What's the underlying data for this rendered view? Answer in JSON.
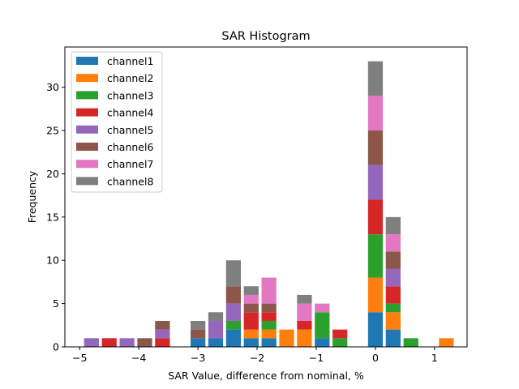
{
  "chart_data": {
    "type": "bar",
    "stacked": true,
    "title": "SAR Histogram",
    "xlabel": "SAR Value, difference from nominal, %",
    "ylabel": "Frequency",
    "xlim": [
      -5.25,
      1.55
    ],
    "ylim": [
      0,
      34.65
    ],
    "bin_width": 0.25,
    "x": [
      -4.8,
      -4.5,
      -4.2,
      -3.9,
      -3.6,
      -3.0,
      -2.7,
      -2.4,
      -2.1,
      -1.8,
      -1.5,
      -1.2,
      -0.9,
      -0.6,
      -0.3,
      0.0,
      0.3,
      0.6,
      1.2
    ],
    "series": [
      {
        "name": "channel1",
        "color": "#1f77b4",
        "values": [
          0,
          0,
          0,
          0,
          0,
          1,
          1,
          2,
          1,
          1,
          0,
          0,
          1,
          0,
          0,
          4,
          2,
          0,
          0
        ]
      },
      {
        "name": "channel2",
        "color": "#ff7f0e",
        "values": [
          0,
          0,
          0,
          0,
          0,
          0,
          0,
          0,
          1,
          1,
          2,
          2,
          0,
          0,
          0,
          4,
          2,
          0,
          1
        ]
      },
      {
        "name": "channel3",
        "color": "#2ca02c",
        "values": [
          0,
          0,
          0,
          0,
          0,
          0,
          0,
          1,
          0,
          1,
          0,
          0,
          3,
          1,
          0,
          5,
          1,
          1,
          0
        ]
      },
      {
        "name": "channel4",
        "color": "#d62728",
        "values": [
          0,
          1,
          0,
          0,
          1,
          0,
          0,
          0,
          2,
          1,
          0,
          1,
          0,
          1,
          0,
          4,
          2,
          0,
          0
        ]
      },
      {
        "name": "channel5",
        "color": "#9467bd",
        "values": [
          1,
          0,
          1,
          0,
          1,
          0,
          2,
          2,
          0,
          0,
          0,
          0,
          0,
          0,
          0,
          4,
          2,
          0,
          0
        ]
      },
      {
        "name": "channel6",
        "color": "#8c564b",
        "values": [
          0,
          0,
          0,
          1,
          1,
          1,
          0,
          2,
          1,
          1,
          0,
          0,
          0,
          0,
          0,
          4,
          2,
          0,
          0
        ]
      },
      {
        "name": "channel7",
        "color": "#e377c2",
        "values": [
          0,
          0,
          0,
          0,
          0,
          0,
          0,
          0,
          1,
          3,
          0,
          2,
          1,
          0,
          0,
          4,
          2,
          0,
          0
        ]
      },
      {
        "name": "channel8",
        "color": "#7f7f7f",
        "values": [
          0,
          0,
          0,
          0,
          0,
          1,
          1,
          3,
          1,
          0,
          0,
          1,
          0,
          0,
          0,
          4,
          2,
          0,
          0
        ]
      }
    ],
    "xticks": [
      -5,
      -4,
      -3,
      -2,
      -1,
      0,
      1
    ],
    "xtick_labels": [
      "−5",
      "−4",
      "−3",
      "−2",
      "−1",
      "0",
      "1"
    ],
    "yticks": [
      0,
      5,
      10,
      15,
      20,
      25,
      30
    ],
    "ytick_labels": [
      "0",
      "5",
      "10",
      "15",
      "20",
      "25",
      "30"
    ],
    "legend_position": "top-left",
    "grid": false
  }
}
